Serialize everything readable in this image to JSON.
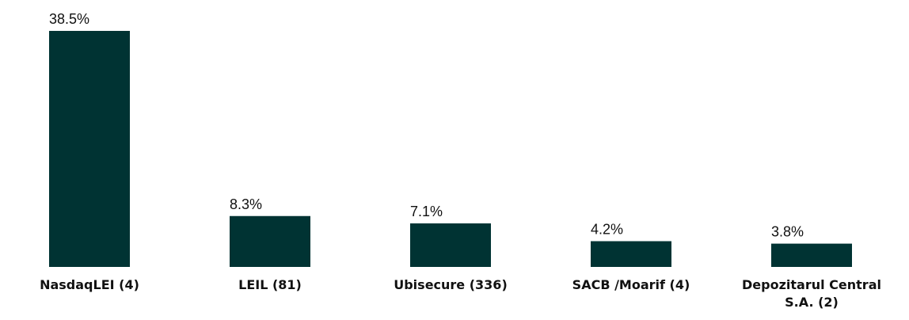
{
  "chart_data": {
    "type": "bar",
    "categories": [
      "NasdaqLEI (4)",
      "LEIL (81)",
      "Ubisecure (336)",
      "SACB /Moarif (4)",
      "Depozitarul Central S.A. (2)"
    ],
    "values": [
      38.5,
      8.3,
      7.1,
      4.2,
      3.8
    ],
    "value_labels": [
      "38.5%",
      "8.3%",
      "7.1%",
      "4.2%",
      "3.8%"
    ],
    "color": "#003333"
  }
}
